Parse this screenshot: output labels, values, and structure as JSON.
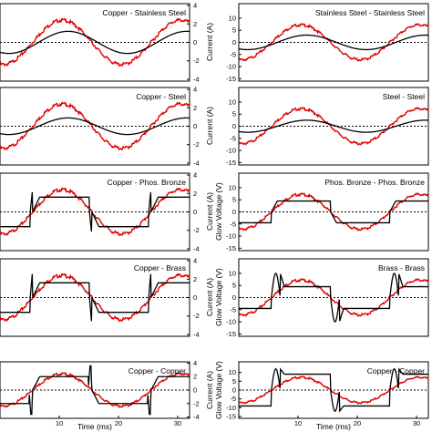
{
  "chart_data": {
    "type": "line",
    "xlabel_left": "Time (ms)",
    "xlabel_right": "Time (ms)",
    "ylabel_current": "Current (A)",
    "ylabel_voltage": "Glow Voltage (V)",
    "xlim": [
      0,
      32
    ],
    "x_ticks": [
      "10",
      "20",
      "30"
    ],
    "current_ylim": [
      -4.2,
      4.2
    ],
    "current_ticks": [
      "4",
      "2",
      "0",
      "-2",
      "-4"
    ],
    "voltage_ylim": [
      -16,
      16
    ],
    "voltage_ticks": [
      "10",
      "5",
      "0",
      "-5",
      "-10",
      "-15"
    ],
    "colors": {
      "current": "#000000",
      "reference": "#e00000",
      "zero": "#000000"
    },
    "sinusoid_reference": {
      "amplitude": 2.4,
      "period_ms": 20,
      "zero_crossing_ms": 5.5
    },
    "panels": [
      {
        "row": 0,
        "col": 0,
        "title": "Copper - Stainless Steel",
        "kind": "current",
        "series": [
          {
            "key": "current",
            "shape": "sine",
            "amplitude": 1.2
          }
        ]
      },
      {
        "row": 0,
        "col": 1,
        "title": "Stainless Steel - Stainless Steel",
        "kind": "voltage",
        "series": [
          {
            "key": "current",
            "shape": "sine",
            "amplitude": 3.0
          }
        ]
      },
      {
        "row": 1,
        "col": 0,
        "title": "Copper - Steel",
        "kind": "current",
        "series": [
          {
            "key": "current",
            "shape": "sine",
            "amplitude": 0.9
          }
        ]
      },
      {
        "row": 1,
        "col": 1,
        "title": "Steel - Steel",
        "kind": "voltage",
        "series": [
          {
            "key": "current",
            "shape": "sine",
            "amplitude": 2.5
          }
        ]
      },
      {
        "row": 2,
        "col": 0,
        "title": "Copper - Phos. Bronze",
        "kind": "current",
        "series": [
          {
            "key": "current",
            "shape": "spike",
            "plateau": 1.6,
            "spike": -2.5
          }
        ]
      },
      {
        "row": 2,
        "col": 1,
        "title": "Phos. Bronze - Phos. Bronze",
        "kind": "voltage",
        "series": [
          {
            "key": "current",
            "shape": "glow",
            "plateau": 4.5
          }
        ]
      },
      {
        "row": 3,
        "col": 0,
        "title": "Copper - Brass",
        "kind": "current",
        "series": [
          {
            "key": "current",
            "shape": "spike",
            "plateau": 1.6,
            "spike": -3.0
          }
        ]
      },
      {
        "row": 3,
        "col": 1,
        "title": "Brass - Brass",
        "kind": "voltage",
        "series": [
          {
            "key": "current",
            "shape": "glow_spike",
            "plateau": 4.5,
            "spike": 10
          }
        ]
      },
      {
        "row": 4,
        "col": 0,
        "title": "Copper - Copper",
        "kind": "current",
        "series": [
          {
            "key": "current",
            "shape": "spike",
            "plateau": 2.0,
            "spike": 3.6
          }
        ]
      },
      {
        "row": 4,
        "col": 1,
        "title": "Copper - Copper",
        "kind": "voltage",
        "series": [
          {
            "key": "current",
            "shape": "glow_spike",
            "plateau": 9.0,
            "spike": 12
          }
        ]
      }
    ]
  }
}
